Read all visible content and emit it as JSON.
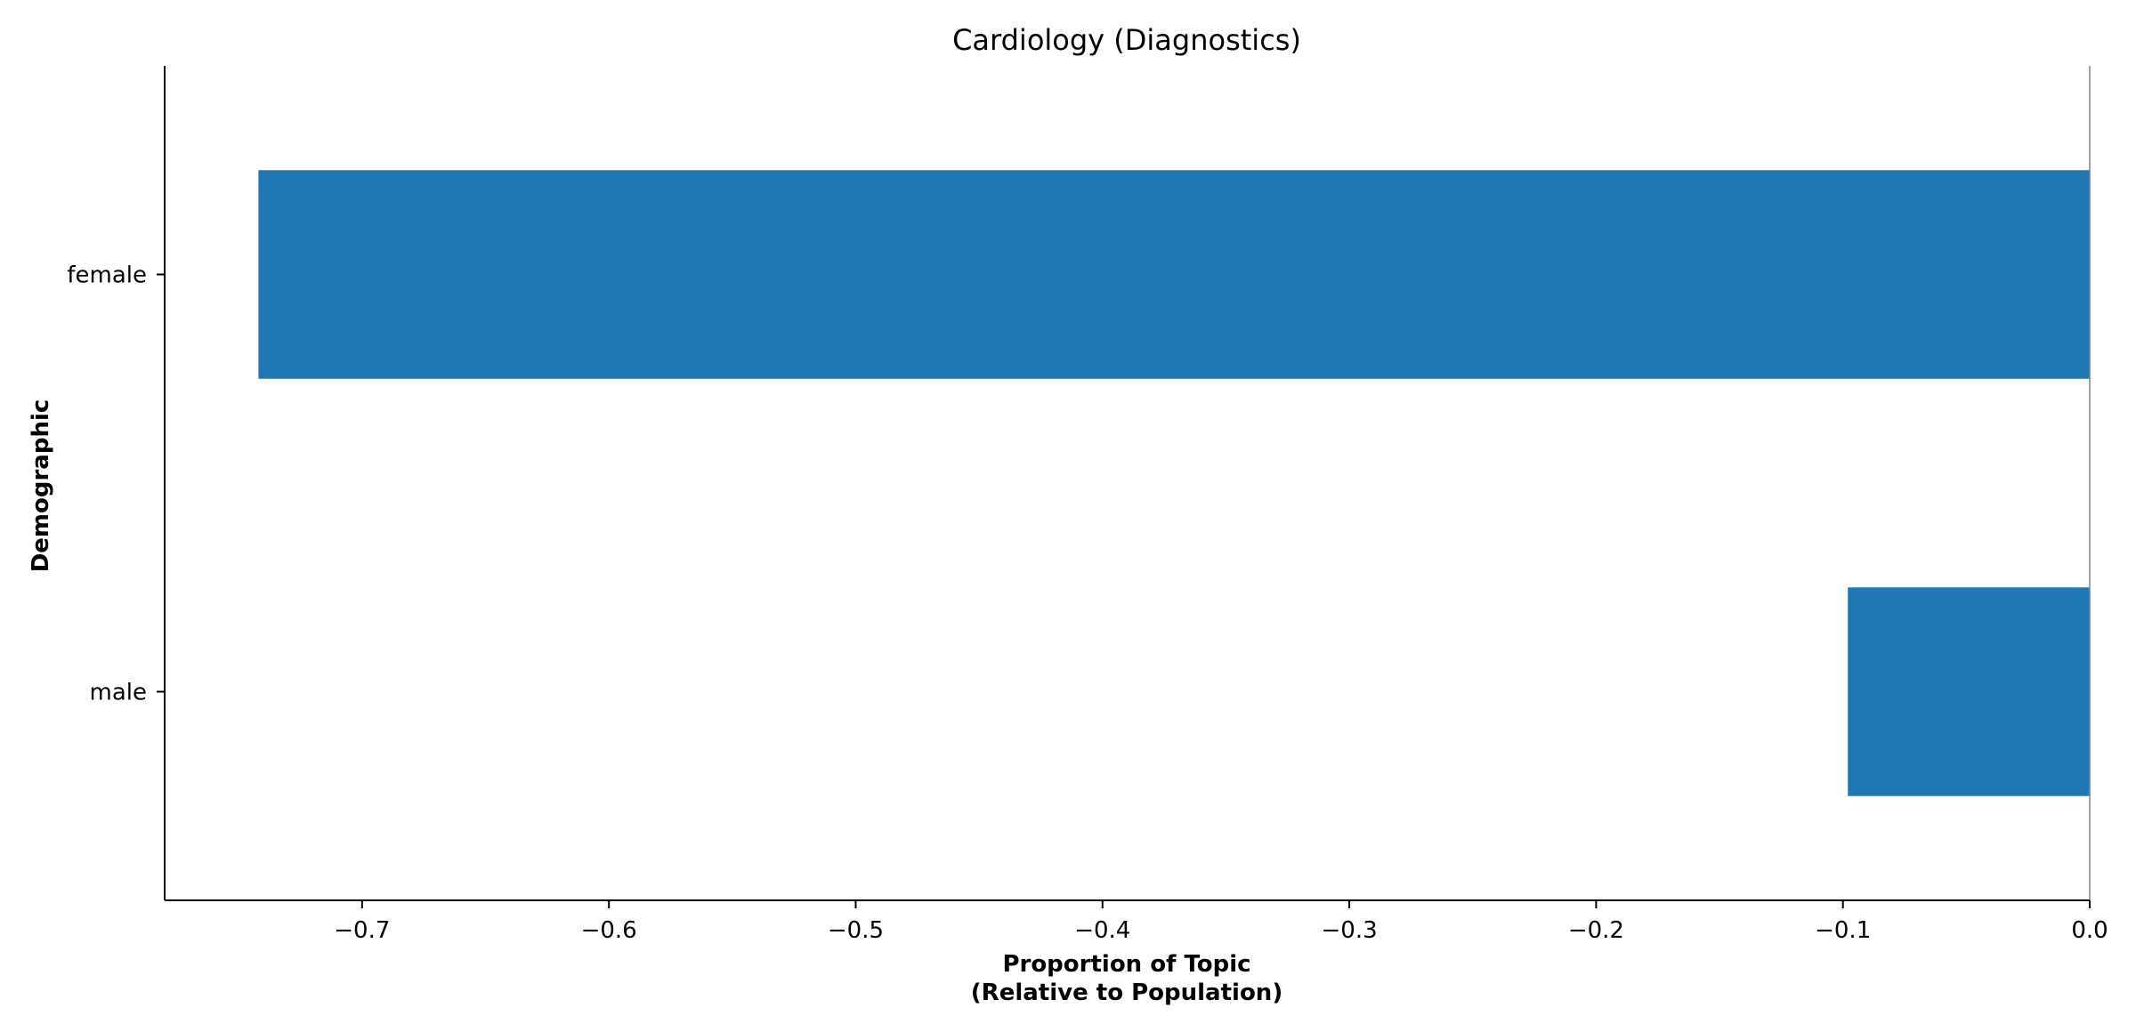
{
  "chart_data": {
    "type": "bar",
    "orientation": "horizontal",
    "title": "Cardiology (Diagnostics)",
    "xlabel_lines": [
      "Proportion of Topic",
      "(Relative to Population)"
    ],
    "ylabel": "Demographic",
    "categories": [
      "female",
      "male"
    ],
    "values": [
      -0.742,
      -0.098
    ],
    "xlim": [
      -0.78,
      0.0
    ],
    "xticks": [
      -0.7,
      -0.6,
      -0.5,
      -0.4,
      -0.3,
      -0.2,
      -0.1,
      0.0
    ],
    "xtick_labels": [
      "−0.7",
      "−0.6",
      "−0.5",
      "−0.4",
      "−0.3",
      "−0.2",
      "−0.1",
      "0.0"
    ],
    "bar_color": "#1f77b4",
    "zero_line": true,
    "grid": false,
    "legend": false
  }
}
